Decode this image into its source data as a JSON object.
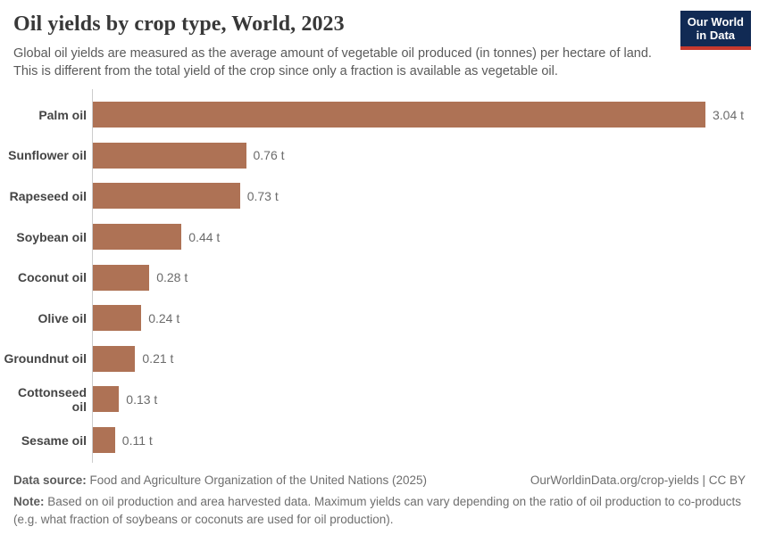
{
  "header": {
    "title": "Oil yields by crop type, World, 2023",
    "subtitle_line1": "Global oil yields are measured as the average amount of vegetable oil produced (in tonnes) per hectare of land.",
    "subtitle_line2": "This is different from the total yield of the crop since only a fraction is available as vegetable oil.",
    "logo": {
      "line1": "Our World",
      "line2": "in Data",
      "bg_color": "#112A54",
      "stripe_color": "#C7392E"
    }
  },
  "chart_data": {
    "type": "bar",
    "orientation": "horizontal",
    "title": "Oil yields by crop type, World, 2023",
    "xlabel": "",
    "ylabel": "",
    "unit": "t",
    "xlim": [
      0,
      3.04
    ],
    "grid": false,
    "legend": null,
    "bar_color": "#AE7255",
    "categories": [
      "Palm oil",
      "Sunflower oil",
      "Rapeseed oil",
      "Soybean oil",
      "Coconut oil",
      "Olive oil",
      "Groundnut oil",
      "Cottonseed oil",
      "Sesame oil"
    ],
    "values": [
      3.04,
      0.76,
      0.73,
      0.44,
      0.28,
      0.24,
      0.21,
      0.13,
      0.11
    ],
    "value_labels": [
      "3.04 t",
      "0.76 t",
      "0.73 t",
      "0.44 t",
      "0.28 t",
      "0.24 t",
      "0.21 t",
      "0.13 t",
      "0.11 t"
    ]
  },
  "footer": {
    "datasource_label": "Data source:",
    "datasource_text": "Food and Agriculture Organization of the United Nations (2025)",
    "link_text": "OurWorldinData.org/crop-yields | CC BY",
    "note_label": "Note:",
    "note_text": "Based on oil production and area harvested data. Maximum yields can vary depending on the ratio of oil production to co-products (e.g. what fraction of soybeans or coconuts are used for oil production)."
  }
}
